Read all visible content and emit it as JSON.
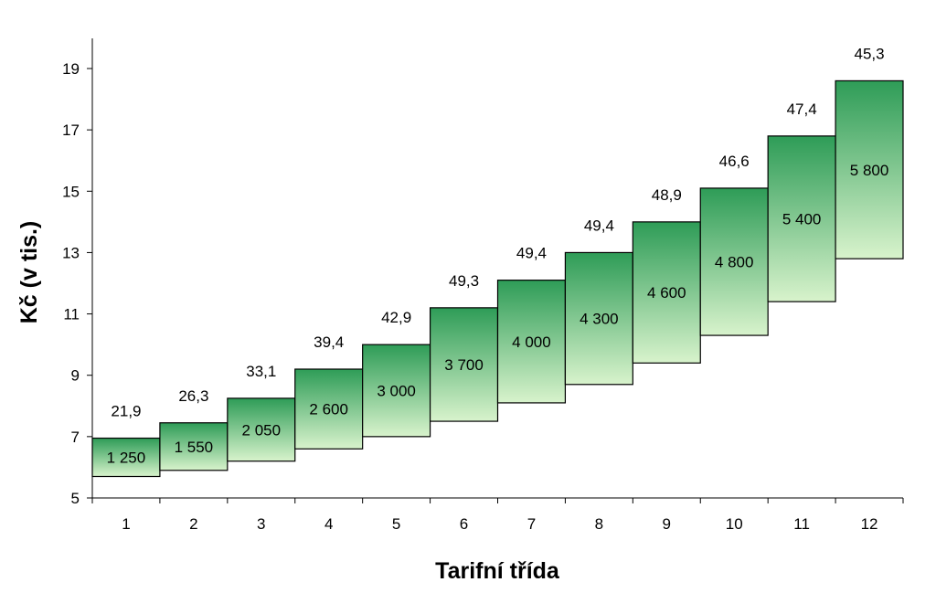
{
  "chart_data": {
    "type": "bar",
    "xlabel": "Tarifní třída",
    "ylabel": "Kč (v tis.)",
    "ylim": [
      5,
      20
    ],
    "yticks": [
      5,
      7,
      9,
      11,
      13,
      15,
      17,
      19
    ],
    "grid": false,
    "categories": [
      "1",
      "2",
      "3",
      "4",
      "5",
      "6",
      "7",
      "8",
      "9",
      "10",
      "11",
      "12"
    ],
    "ranges": [
      {
        "low": 5.7,
        "high": 6.95
      },
      {
        "low": 5.9,
        "high": 7.45
      },
      {
        "low": 6.2,
        "high": 8.25
      },
      {
        "low": 6.6,
        "high": 9.2
      },
      {
        "low": 7.0,
        "high": 10.0
      },
      {
        "low": 7.5,
        "high": 11.2
      },
      {
        "low": 8.1,
        "high": 12.1
      },
      {
        "low": 8.7,
        "high": 13.0
      },
      {
        "low": 9.4,
        "high": 14.0
      },
      {
        "low": 10.3,
        "high": 15.1
      },
      {
        "low": 11.4,
        "high": 16.8
      },
      {
        "low": 12.8,
        "high": 18.6
      }
    ],
    "inner_labels": [
      "1 250",
      "1 550",
      "2 050",
      "2 600",
      "3 000",
      "3 700",
      "4 000",
      "4 300",
      "4 600",
      "4 800",
      "5 400",
      "5 800"
    ],
    "top_labels": [
      "21,9",
      "26,3",
      "33,1",
      "39,4",
      "42,9",
      "49,3",
      "49,4",
      "49,4",
      "48,9",
      "46,6",
      "47,4",
      "45,3"
    ],
    "colors": {
      "bar_top": "#2e9c57",
      "bar_bottom": "#d8f3cc",
      "axis": "#000000"
    }
  }
}
